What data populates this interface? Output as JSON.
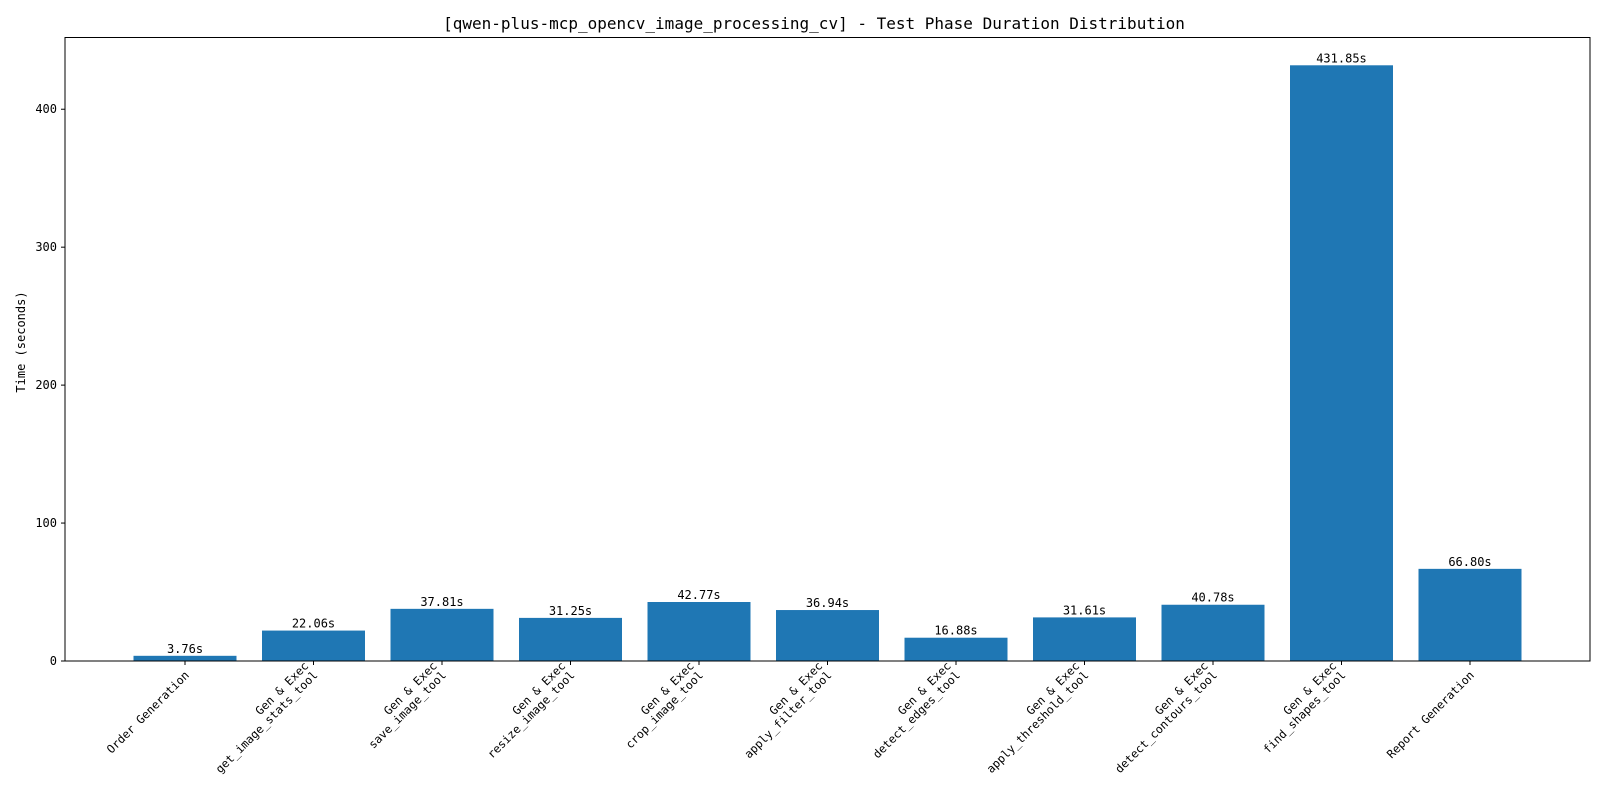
{
  "chart_data": {
    "type": "bar",
    "title": "[qwen-plus-mcp_opencv_image_processing_cv] - Test Phase Duration Distribution",
    "xlabel": "",
    "ylabel": "Time (seconds)",
    "ylim": [
      0,
      452
    ],
    "yticks": [
      0,
      100,
      200,
      300,
      400
    ],
    "grid": false,
    "bar_color": "#1f77b4",
    "categories": [
      [
        "Order Generation"
      ],
      [
        "Gen & Exec",
        "get_image_stats_tool"
      ],
      [
        "Gen & Exec",
        "save_image_tool"
      ],
      [
        "Gen & Exec",
        "resize_image_tool"
      ],
      [
        "Gen & Exec",
        "crop_image_tool"
      ],
      [
        "Gen & Exec",
        "apply_filter_tool"
      ],
      [
        "Gen & Exec",
        "detect_edges_tool"
      ],
      [
        "Gen & Exec",
        "apply_threshold_tool"
      ],
      [
        "Gen & Exec",
        "detect_contours_tool"
      ],
      [
        "Gen & Exec",
        "find_shapes_tool"
      ],
      [
        "Report Generation"
      ]
    ],
    "values": [
      3.76,
      22.06,
      37.81,
      31.25,
      42.77,
      36.94,
      16.88,
      31.61,
      40.78,
      431.85,
      66.8
    ],
    "value_labels": [
      "3.76s",
      "22.06s",
      "37.81s",
      "31.25s",
      "42.77s",
      "36.94s",
      "16.88s",
      "31.61s",
      "40.78s",
      "431.85s",
      "66.80s"
    ]
  }
}
